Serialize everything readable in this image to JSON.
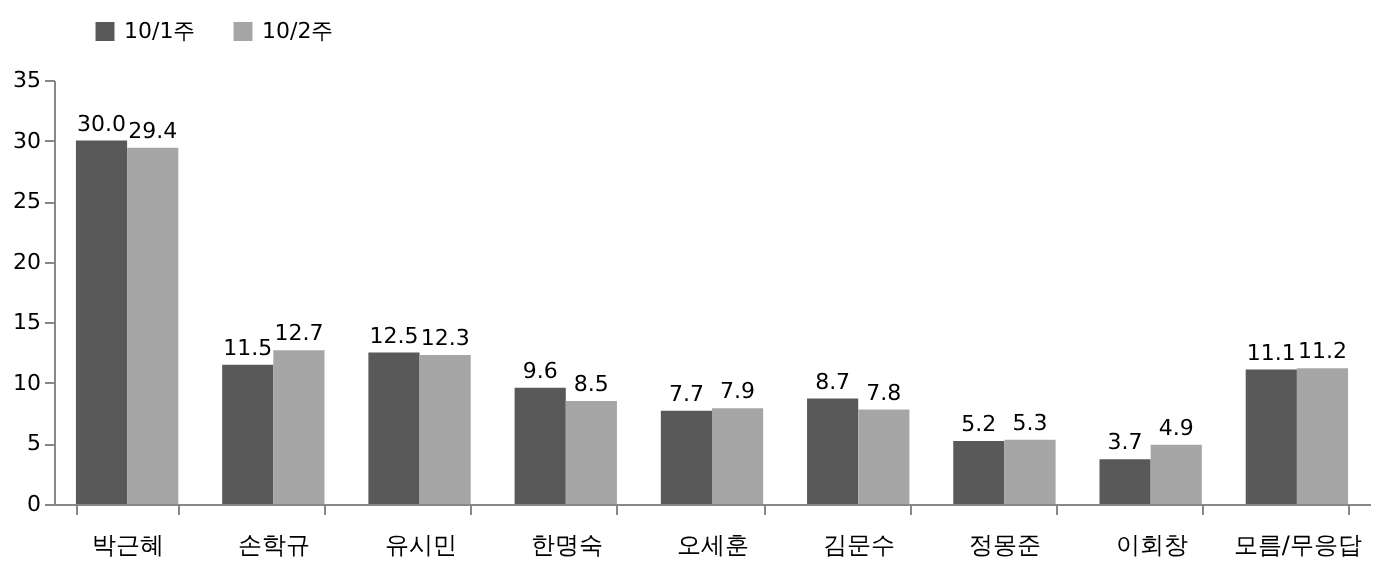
{
  "chart_data": {
    "type": "bar",
    "categories": [
      "박근혜",
      "손학규",
      "유시민",
      "한명숙",
      "오세훈",
      "김문수",
      "정몽준",
      "이회창",
      "모름/무응답"
    ],
    "series": [
      {
        "name": "10/1주",
        "color": "#595959",
        "values": [
          30.0,
          11.5,
          12.5,
          9.6,
          7.7,
          8.7,
          5.2,
          3.7,
          11.1
        ],
        "value_labels": [
          "30.0",
          "11.5",
          "12.5",
          "9.6",
          "7.7",
          "8.7",
          "5.2",
          "3.7",
          "11.1"
        ]
      },
      {
        "name": "10/2주",
        "color": "#a6a6a6",
        "values": [
          29.4,
          12.7,
          12.3,
          8.5,
          7.9,
          7.8,
          5.3,
          4.9,
          11.2
        ],
        "value_labels": [
          "29.4",
          "12.7",
          "12.3",
          "8.5",
          "7.9",
          "7.8",
          "5.3",
          "4.9",
          "11.2"
        ]
      }
    ],
    "ylim": [
      0,
      35
    ],
    "yticks": [
      0,
      5,
      10,
      15,
      20,
      25,
      30,
      35
    ],
    "grid": false,
    "legend": "top left"
  }
}
